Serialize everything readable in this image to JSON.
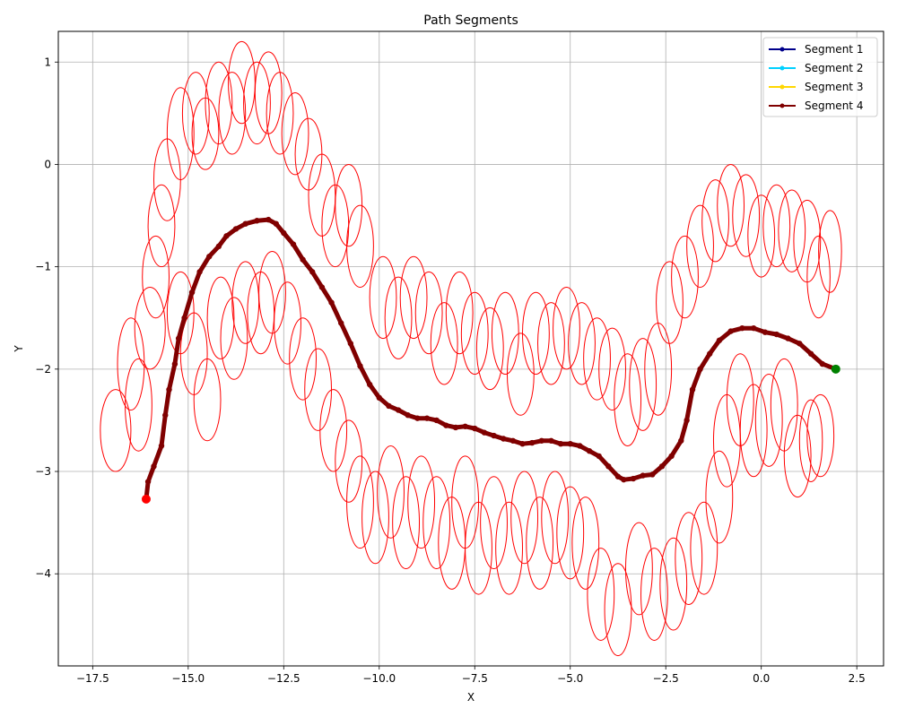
{
  "chart_data": {
    "type": "line",
    "title": "Path Segments",
    "xlabel": "X",
    "ylabel": "Y",
    "xlim": [
      -18.4,
      3.2
    ],
    "ylim": [
      -4.9,
      1.3
    ],
    "xticks": [
      -17.5,
      -15.0,
      -12.5,
      -10.0,
      -7.5,
      -5.0,
      -2.5,
      0.0,
      2.5
    ],
    "xtick_labels": [
      "−17.5",
      "−15.0",
      "−12.5",
      "−10.0",
      "−7.5",
      "−5.0",
      "−2.5",
      "0.0",
      "2.5"
    ],
    "yticks": [
      1,
      0,
      -1,
      -2,
      -3,
      -4
    ],
    "ytick_labels": [
      "1",
      "0",
      "−1",
      "−2",
      "−3",
      "−4"
    ],
    "grid": true,
    "legend_position": "top-right",
    "series": [
      {
        "name": "Segment 1",
        "color": "#00008b",
        "points": []
      },
      {
        "name": "Segment 2",
        "color": "#00d0ff",
        "points": []
      },
      {
        "name": "Segment 3",
        "color": "#ffd700",
        "points": []
      },
      {
        "name": "Segment 4",
        "color": "#800000",
        "points": [
          [
            -16.1,
            -3.27
          ],
          [
            -16.05,
            -3.1
          ],
          [
            -15.9,
            -2.95
          ],
          [
            -15.7,
            -2.75
          ],
          [
            -15.6,
            -2.45
          ],
          [
            -15.5,
            -2.2
          ],
          [
            -15.35,
            -1.95
          ],
          [
            -15.25,
            -1.7
          ],
          [
            -15.1,
            -1.5
          ],
          [
            -14.9,
            -1.25
          ],
          [
            -14.7,
            -1.05
          ],
          [
            -14.45,
            -0.9
          ],
          [
            -14.2,
            -0.8
          ],
          [
            -14.0,
            -0.7
          ],
          [
            -13.75,
            -0.63
          ],
          [
            -13.5,
            -0.58
          ],
          [
            -13.2,
            -0.55
          ],
          [
            -12.9,
            -0.54
          ],
          [
            -12.7,
            -0.58
          ],
          [
            -12.5,
            -0.67
          ],
          [
            -12.25,
            -0.78
          ],
          [
            -12.0,
            -0.93
          ],
          [
            -11.75,
            -1.05
          ],
          [
            -11.5,
            -1.2
          ],
          [
            -11.25,
            -1.35
          ],
          [
            -11.0,
            -1.55
          ],
          [
            -10.75,
            -1.75
          ],
          [
            -10.5,
            -1.97
          ],
          [
            -10.25,
            -2.15
          ],
          [
            -10.0,
            -2.28
          ],
          [
            -9.75,
            -2.36
          ],
          [
            -9.5,
            -2.4
          ],
          [
            -9.25,
            -2.45
          ],
          [
            -9.0,
            -2.48
          ],
          [
            -8.75,
            -2.48
          ],
          [
            -8.5,
            -2.5
          ],
          [
            -8.25,
            -2.55
          ],
          [
            -8.0,
            -2.57
          ],
          [
            -7.75,
            -2.56
          ],
          [
            -7.5,
            -2.58
          ],
          [
            -7.25,
            -2.62
          ],
          [
            -7.0,
            -2.65
          ],
          [
            -6.75,
            -2.68
          ],
          [
            -6.5,
            -2.7
          ],
          [
            -6.25,
            -2.73
          ],
          [
            -6.0,
            -2.72
          ],
          [
            -5.75,
            -2.7
          ],
          [
            -5.5,
            -2.7
          ],
          [
            -5.25,
            -2.73
          ],
          [
            -5.0,
            -2.73
          ],
          [
            -4.75,
            -2.75
          ],
          [
            -4.5,
            -2.8
          ],
          [
            -4.25,
            -2.85
          ],
          [
            -4.0,
            -2.95
          ],
          [
            -3.75,
            -3.05
          ],
          [
            -3.6,
            -3.08
          ],
          [
            -3.35,
            -3.07
          ],
          [
            -3.1,
            -3.04
          ],
          [
            -2.85,
            -3.03
          ],
          [
            -2.6,
            -2.95
          ],
          [
            -2.35,
            -2.85
          ],
          [
            -2.1,
            -2.7
          ],
          [
            -1.95,
            -2.5
          ],
          [
            -1.8,
            -2.2
          ],
          [
            -1.6,
            -2.0
          ],
          [
            -1.35,
            -1.85
          ],
          [
            -1.1,
            -1.72
          ],
          [
            -0.8,
            -1.63
          ],
          [
            -0.5,
            -1.6
          ],
          [
            -0.2,
            -1.6
          ],
          [
            0.1,
            -1.64
          ],
          [
            0.4,
            -1.66
          ],
          [
            0.7,
            -1.7
          ],
          [
            1.0,
            -1.75
          ],
          [
            1.3,
            -1.85
          ],
          [
            1.6,
            -1.95
          ],
          [
            1.95,
            -2.0
          ]
        ]
      }
    ],
    "start_point": {
      "x": -16.1,
      "y": -3.27,
      "color": "#ff0000"
    },
    "end_point": {
      "x": 1.95,
      "y": -2.0,
      "color": "#008000"
    },
    "ellipses": {
      "color": "#ff0000",
      "items": [
        [
          -16.9,
          -2.6,
          0.4,
          0.4
        ],
        [
          -16.5,
          -1.95,
          0.35,
          0.45
        ],
        [
          -16.3,
          -2.35,
          0.35,
          0.45
        ],
        [
          -16.0,
          -1.6,
          0.4,
          0.4
        ],
        [
          -15.85,
          -1.1,
          0.35,
          0.4
        ],
        [
          -15.7,
          -0.6,
          0.35,
          0.4
        ],
        [
          -15.55,
          -0.15,
          0.35,
          0.4
        ],
        [
          -15.2,
          0.3,
          0.35,
          0.45
        ],
        [
          -14.8,
          0.5,
          0.35,
          0.4
        ],
        [
          -14.55,
          0.3,
          0.35,
          0.35
        ],
        [
          -14.2,
          0.6,
          0.35,
          0.4
        ],
        [
          -13.85,
          0.5,
          0.35,
          0.4
        ],
        [
          -13.6,
          0.8,
          0.35,
          0.4
        ],
        [
          -13.2,
          0.6,
          0.35,
          0.4
        ],
        [
          -12.9,
          0.7,
          0.35,
          0.4
        ],
        [
          -12.6,
          0.5,
          0.35,
          0.4
        ],
        [
          -12.2,
          0.3,
          0.35,
          0.4
        ],
        [
          -11.85,
          0.1,
          0.35,
          0.35
        ],
        [
          -11.5,
          -0.3,
          0.35,
          0.4
        ],
        [
          -11.15,
          -0.6,
          0.35,
          0.4
        ],
        [
          -10.8,
          -0.4,
          0.35,
          0.4
        ],
        [
          -10.5,
          -0.8,
          0.35,
          0.4
        ],
        [
          -15.2,
          -1.45,
          0.35,
          0.4
        ],
        [
          -14.85,
          -1.85,
          0.35,
          0.4
        ],
        [
          -14.5,
          -2.3,
          0.35,
          0.4
        ],
        [
          -14.15,
          -1.5,
          0.35,
          0.4
        ],
        [
          -13.8,
          -1.7,
          0.35,
          0.4
        ],
        [
          -13.5,
          -1.35,
          0.35,
          0.4
        ],
        [
          -13.1,
          -1.45,
          0.35,
          0.4
        ],
        [
          -12.8,
          -1.25,
          0.35,
          0.4
        ],
        [
          -12.4,
          -1.55,
          0.35,
          0.4
        ],
        [
          -12.0,
          -1.9,
          0.35,
          0.4
        ],
        [
          -11.6,
          -2.2,
          0.35,
          0.4
        ],
        [
          -11.2,
          -2.6,
          0.35,
          0.4
        ],
        [
          -10.8,
          -2.9,
          0.35,
          0.4
        ],
        [
          -10.5,
          -3.3,
          0.35,
          0.45
        ],
        [
          -10.1,
          -3.45,
          0.35,
          0.45
        ],
        [
          -9.7,
          -3.2,
          0.35,
          0.45
        ],
        [
          -9.3,
          -3.5,
          0.35,
          0.45
        ],
        [
          -8.9,
          -3.3,
          0.35,
          0.45
        ],
        [
          -8.5,
          -3.5,
          0.35,
          0.45
        ],
        [
          -8.1,
          -3.7,
          0.35,
          0.45
        ],
        [
          -7.75,
          -3.3,
          0.35,
          0.45
        ],
        [
          -7.4,
          -3.75,
          0.35,
          0.45
        ],
        [
          -7.0,
          -3.5,
          0.35,
          0.45
        ],
        [
          -6.6,
          -3.75,
          0.35,
          0.45
        ],
        [
          -6.2,
          -3.45,
          0.35,
          0.45
        ],
        [
          -5.8,
          -3.7,
          0.35,
          0.45
        ],
        [
          -5.4,
          -3.45,
          0.35,
          0.45
        ],
        [
          -5.0,
          -3.6,
          0.35,
          0.45
        ],
        [
          -4.6,
          -3.7,
          0.35,
          0.45
        ],
        [
          -4.2,
          -4.2,
          0.35,
          0.45
        ],
        [
          -3.75,
          -4.35,
          0.35,
          0.45
        ],
        [
          -3.2,
          -3.95,
          0.35,
          0.45
        ],
        [
          -2.8,
          -4.2,
          0.35,
          0.45
        ],
        [
          -2.3,
          -4.1,
          0.35,
          0.45
        ],
        [
          -1.9,
          -3.85,
          0.35,
          0.45
        ],
        [
          -1.5,
          -3.75,
          0.35,
          0.45
        ],
        [
          -1.1,
          -3.25,
          0.35,
          0.45
        ],
        [
          -9.9,
          -1.3,
          0.35,
          0.4
        ],
        [
          -9.5,
          -1.5,
          0.35,
          0.4
        ],
        [
          -9.1,
          -1.3,
          0.35,
          0.4
        ],
        [
          -8.7,
          -1.45,
          0.35,
          0.4
        ],
        [
          -8.3,
          -1.75,
          0.35,
          0.4
        ],
        [
          -7.9,
          -1.45,
          0.35,
          0.4
        ],
        [
          -7.5,
          -1.65,
          0.35,
          0.4
        ],
        [
          -7.1,
          -1.8,
          0.35,
          0.4
        ],
        [
          -6.7,
          -1.65,
          0.35,
          0.4
        ],
        [
          -6.3,
          -2.05,
          0.35,
          0.4
        ],
        [
          -5.9,
          -1.65,
          0.35,
          0.4
        ],
        [
          -5.5,
          -1.75,
          0.35,
          0.4
        ],
        [
          -5.1,
          -1.6,
          0.35,
          0.4
        ],
        [
          -4.7,
          -1.75,
          0.35,
          0.4
        ],
        [
          -4.3,
          -1.9,
          0.35,
          0.4
        ],
        [
          -3.9,
          -2.0,
          0.35,
          0.4
        ],
        [
          -3.5,
          -2.3,
          0.35,
          0.45
        ],
        [
          -3.1,
          -2.15,
          0.35,
          0.45
        ],
        [
          -2.7,
          -2.0,
          0.35,
          0.45
        ],
        [
          -2.4,
          -1.35,
          0.35,
          0.4
        ],
        [
          -2.0,
          -1.1,
          0.35,
          0.4
        ],
        [
          -1.6,
          -0.8,
          0.35,
          0.4
        ],
        [
          -1.2,
          -0.55,
          0.35,
          0.4
        ],
        [
          -0.8,
          -0.4,
          0.35,
          0.4
        ],
        [
          -0.4,
          -0.5,
          0.35,
          0.4
        ],
        [
          0.0,
          -0.7,
          0.35,
          0.4
        ],
        [
          0.4,
          -0.6,
          0.35,
          0.4
        ],
        [
          0.8,
          -0.65,
          0.35,
          0.4
        ],
        [
          1.2,
          -0.75,
          0.35,
          0.4
        ],
        [
          1.5,
          -1.1,
          0.3,
          0.4
        ],
        [
          1.8,
          -0.85,
          0.3,
          0.4
        ],
        [
          -0.9,
          -2.7,
          0.35,
          0.45
        ],
        [
          -0.55,
          -2.3,
          0.35,
          0.45
        ],
        [
          -0.2,
          -2.6,
          0.35,
          0.45
        ],
        [
          0.2,
          -2.5,
          0.35,
          0.45
        ],
        [
          0.6,
          -2.35,
          0.35,
          0.45
        ],
        [
          0.95,
          -2.85,
          0.35,
          0.4
        ],
        [
          1.3,
          -2.7,
          0.3,
          0.4
        ],
        [
          1.55,
          -2.65,
          0.35,
          0.4
        ]
      ]
    }
  }
}
